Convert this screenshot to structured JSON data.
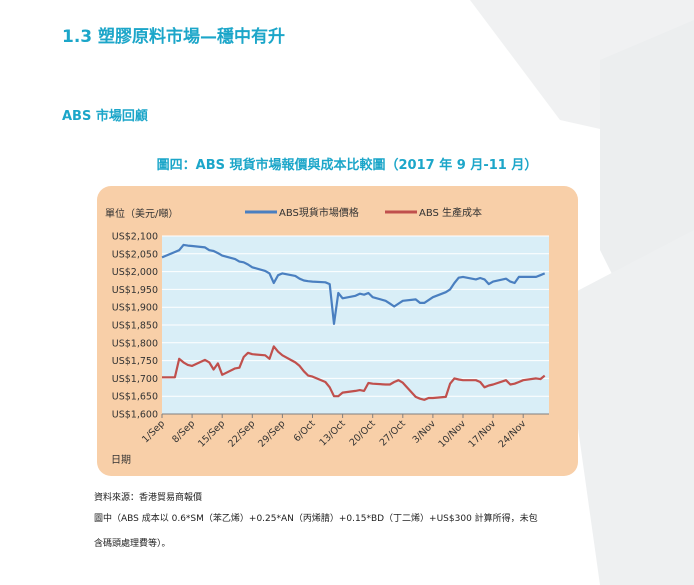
{
  "heading": "1.3 塑膠原料市場—穩中有升",
  "subheading": "ABS 市場回顧",
  "figure_title": "圖四：ABS  現貨市場報價與成本比較圖（2017 年 9 月-11 月）",
  "notes": {
    "source": "資料來源：香港貿易商報價",
    "formula": "圖中（ABS  成本以 0.6*SM（苯乙烯）+0.25*AN（丙烯腈）+0.15*BD（丁二烯）+US$300  計算所得，未包",
    "formula_cont": "含碼頭處理費等）。"
  },
  "colors": {
    "accent": "#1ca6c9",
    "panel": "#f8cfa8",
    "plot_bg": "#d9eef7",
    "series_price": "#4a7fc0",
    "series_cost": "#c0504d"
  },
  "chart_data": {
    "type": "line",
    "ylabel": "單位（美元/噸）",
    "xlabel": "日期",
    "ylim": [
      1600,
      2100
    ],
    "yticks": [
      1600,
      1650,
      1700,
      1750,
      1800,
      1850,
      1900,
      1950,
      2000,
      2050,
      2100
    ],
    "ytick_labels": [
      "US$1,600",
      "US$1,650",
      "US$1,700",
      "US$1,750",
      "US$1,800",
      "US$1,850",
      "US$1,900",
      "US$1,950",
      "US$2,000",
      "US$2,050",
      "US$2,100"
    ],
    "x_range": [
      "2017-09-01",
      "2017-11-30"
    ],
    "xtick_dates": [
      "2017-09-01",
      "2017-09-08",
      "2017-09-15",
      "2017-09-22",
      "2017-09-29",
      "2017-10-06",
      "2017-10-13",
      "2017-10-20",
      "2017-10-27",
      "2017-11-03",
      "2017-11-10",
      "2017-11-17",
      "2017-11-24"
    ],
    "xtick_labels": [
      "1/Sep",
      "8/Sep",
      "15/Sep",
      "22/Sep",
      "29/Sep",
      "6/Oct",
      "13/Oct",
      "20/Oct",
      "27/Oct",
      "3/Nov",
      "10/Nov",
      "17/Nov",
      "24/Nov"
    ],
    "grid": true,
    "legend_position": "top",
    "series": [
      {
        "name": "ABS現貨市場價格",
        "points": [
          [
            "2017-09-01",
            2040
          ],
          [
            "2017-09-04",
            2055
          ],
          [
            "2017-09-05",
            2060
          ],
          [
            "2017-09-06",
            2075
          ],
          [
            "2017-09-07",
            2073
          ],
          [
            "2017-09-08",
            2072
          ],
          [
            "2017-09-11",
            2068
          ],
          [
            "2017-09-12",
            2060
          ],
          [
            "2017-09-13",
            2058
          ],
          [
            "2017-09-14",
            2052
          ],
          [
            "2017-09-15",
            2045
          ],
          [
            "2017-09-18",
            2035
          ],
          [
            "2017-09-19",
            2028
          ],
          [
            "2017-09-20",
            2026
          ],
          [
            "2017-09-21",
            2020
          ],
          [
            "2017-09-22",
            2012
          ],
          [
            "2017-09-25",
            2002
          ],
          [
            "2017-09-26",
            1995
          ],
          [
            "2017-09-27",
            1968
          ],
          [
            "2017-09-28",
            1990
          ],
          [
            "2017-09-29",
            1995
          ],
          [
            "2017-10-02",
            1988
          ],
          [
            "2017-10-03",
            1980
          ],
          [
            "2017-10-04",
            1975
          ],
          [
            "2017-10-05",
            1973
          ],
          [
            "2017-10-06",
            1972
          ],
          [
            "2017-10-09",
            1970
          ],
          [
            "2017-10-10",
            1965
          ],
          [
            "2017-10-11",
            1853
          ],
          [
            "2017-10-12",
            1940
          ],
          [
            "2017-10-13",
            1925
          ],
          [
            "2017-10-16",
            1932
          ],
          [
            "2017-10-17",
            1938
          ],
          [
            "2017-10-18",
            1935
          ],
          [
            "2017-10-19",
            1940
          ],
          [
            "2017-10-20",
            1928
          ],
          [
            "2017-10-23",
            1918
          ],
          [
            "2017-10-24",
            1910
          ],
          [
            "2017-10-25",
            1902
          ],
          [
            "2017-10-26",
            1910
          ],
          [
            "2017-10-27",
            1918
          ],
          [
            "2017-10-30",
            1922
          ],
          [
            "2017-10-31",
            1912
          ],
          [
            "2017-11-01",
            1912
          ],
          [
            "2017-11-02",
            1920
          ],
          [
            "2017-11-03",
            1928
          ],
          [
            "2017-11-06",
            1942
          ],
          [
            "2017-11-07",
            1950
          ],
          [
            "2017-11-08",
            1968
          ],
          [
            "2017-11-09",
            1983
          ],
          [
            "2017-11-10",
            1985
          ],
          [
            "2017-11-13",
            1978
          ],
          [
            "2017-11-14",
            1982
          ],
          [
            "2017-11-15",
            1978
          ],
          [
            "2017-11-16",
            1965
          ],
          [
            "2017-11-17",
            1972
          ],
          [
            "2017-11-20",
            1980
          ],
          [
            "2017-11-21",
            1972
          ],
          [
            "2017-11-22",
            1968
          ],
          [
            "2017-11-23",
            1985
          ],
          [
            "2017-11-24",
            1985
          ],
          [
            "2017-11-27",
            1985
          ],
          [
            "2017-11-28",
            1990
          ],
          [
            "2017-11-29",
            1995
          ]
        ]
      },
      {
        "name": "ABS  生產成本",
        "points": [
          [
            "2017-09-01",
            1703
          ],
          [
            "2017-09-04",
            1703
          ],
          [
            "2017-09-05",
            1755
          ],
          [
            "2017-09-06",
            1745
          ],
          [
            "2017-09-07",
            1738
          ],
          [
            "2017-09-08",
            1735
          ],
          [
            "2017-09-11",
            1752
          ],
          [
            "2017-09-12",
            1745
          ],
          [
            "2017-09-13",
            1725
          ],
          [
            "2017-09-14",
            1742
          ],
          [
            "2017-09-15",
            1710
          ],
          [
            "2017-09-18",
            1728
          ],
          [
            "2017-09-19",
            1730
          ],
          [
            "2017-09-20",
            1760
          ],
          [
            "2017-09-21",
            1772
          ],
          [
            "2017-09-22",
            1768
          ],
          [
            "2017-09-25",
            1765
          ],
          [
            "2017-09-26",
            1755
          ],
          [
            "2017-09-27",
            1790
          ],
          [
            "2017-09-28",
            1775
          ],
          [
            "2017-09-29",
            1765
          ],
          [
            "2017-10-02",
            1745
          ],
          [
            "2017-10-03",
            1735
          ],
          [
            "2017-10-04",
            1720
          ],
          [
            "2017-10-05",
            1708
          ],
          [
            "2017-10-06",
            1705
          ],
          [
            "2017-10-09",
            1690
          ],
          [
            "2017-10-10",
            1675
          ],
          [
            "2017-10-11",
            1650
          ],
          [
            "2017-10-12",
            1650
          ],
          [
            "2017-10-13",
            1660
          ],
          [
            "2017-10-16",
            1665
          ],
          [
            "2017-10-17",
            1667
          ],
          [
            "2017-10-18",
            1665
          ],
          [
            "2017-10-19",
            1687
          ],
          [
            "2017-10-20",
            1685
          ],
          [
            "2017-10-23",
            1683
          ],
          [
            "2017-10-24",
            1683
          ],
          [
            "2017-10-25",
            1690
          ],
          [
            "2017-10-26",
            1695
          ],
          [
            "2017-10-27",
            1688
          ],
          [
            "2017-10-30",
            1648
          ],
          [
            "2017-10-31",
            1643
          ],
          [
            "2017-11-01",
            1640
          ],
          [
            "2017-11-02",
            1645
          ],
          [
            "2017-11-03",
            1645
          ],
          [
            "2017-11-06",
            1648
          ],
          [
            "2017-11-07",
            1685
          ],
          [
            "2017-11-08",
            1700
          ],
          [
            "2017-11-09",
            1697
          ],
          [
            "2017-11-10",
            1695
          ],
          [
            "2017-11-13",
            1695
          ],
          [
            "2017-11-14",
            1690
          ],
          [
            "2017-11-15",
            1675
          ],
          [
            "2017-11-16",
            1680
          ],
          [
            "2017-11-17",
            1683
          ],
          [
            "2017-11-20",
            1695
          ],
          [
            "2017-11-21",
            1683
          ],
          [
            "2017-11-22",
            1685
          ],
          [
            "2017-11-23",
            1690
          ],
          [
            "2017-11-24",
            1695
          ],
          [
            "2017-11-27",
            1700
          ],
          [
            "2017-11-28",
            1698
          ],
          [
            "2017-11-29",
            1708
          ]
        ]
      }
    ]
  }
}
